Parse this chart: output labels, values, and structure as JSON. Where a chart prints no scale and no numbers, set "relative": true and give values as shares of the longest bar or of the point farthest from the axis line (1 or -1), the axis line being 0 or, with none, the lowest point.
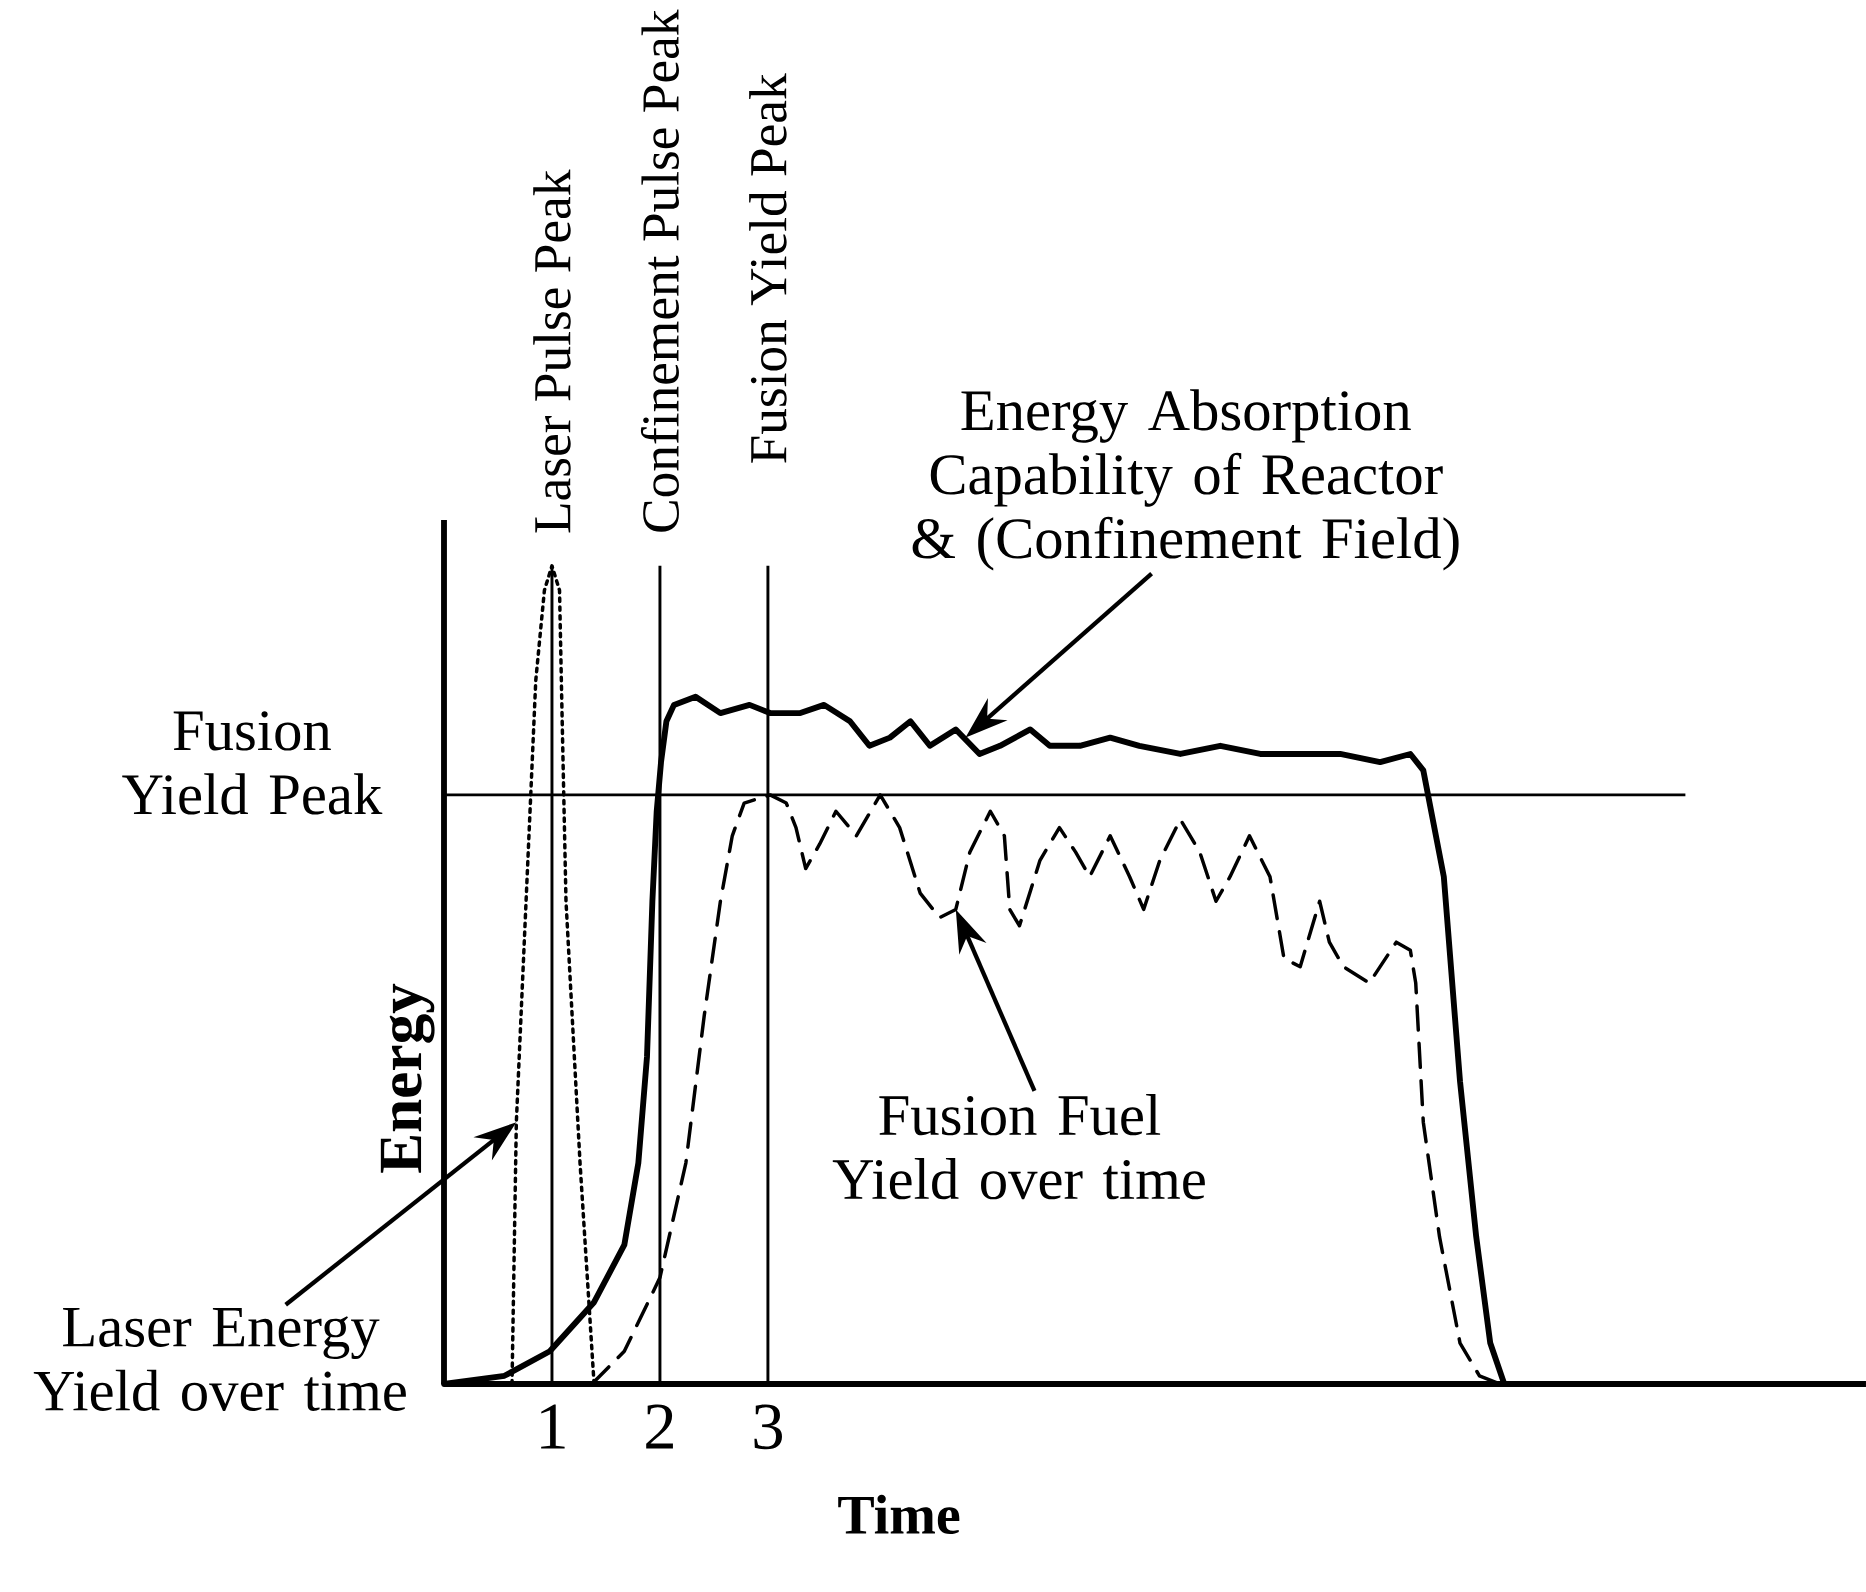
{
  "chart_data": {
    "type": "line",
    "relative": true,
    "xlabel": "Time",
    "ylabel": "Energy",
    "tick_labels": "x",
    "xlim": [
      0,
      13.17
    ],
    "xticks": [
      1,
      2,
      3
    ],
    "series": [
      {
        "color": "#000000",
        "line_style": "dotted",
        "x": [
          0.63,
          0.67,
          0.76,
          0.85,
          0.93,
          1.0,
          1.07,
          1.09,
          1.13,
          1.26,
          1.39
        ],
        "values": [
          0,
          0.32,
          0.59,
          0.86,
          0.97,
          1,
          0.97,
          0.84,
          0.59,
          0.27,
          0
        ]
      },
      {
        "color": "#000000",
        "line_style": "solid",
        "x": [
          0,
          0.56,
          0.98,
          1.39,
          1.67,
          1.8,
          1.88,
          1.93,
          1.97,
          2.01,
          2.06,
          2.13,
          2.33,
          2.56,
          2.83,
          3.02,
          3.3,
          3.52,
          3.76,
          3.94,
          4.13,
          4.32,
          4.5,
          4.74,
          4.96,
          5.15,
          5.43,
          5.61,
          5.89,
          6.17,
          6.44,
          6.82,
          7.19,
          7.56,
          7.93,
          8.3,
          8.67,
          8.95,
          9.07,
          9.26,
          9.41,
          9.56,
          9.69,
          9.82,
          9.93
        ],
        "values": [
          0,
          0.01,
          0.04,
          0.1,
          0.17,
          0.27,
          0.4,
          0.59,
          0.7,
          0.76,
          0.81,
          0.83,
          0.84,
          0.82,
          0.83,
          0.82,
          0.82,
          0.83,
          0.81,
          0.78,
          0.79,
          0.81,
          0.78,
          0.8,
          0.77,
          0.78,
          0.8,
          0.78,
          0.78,
          0.79,
          0.78,
          0.77,
          0.78,
          0.77,
          0.77,
          0.77,
          0.76,
          0.77,
          0.75,
          0.62,
          0.37,
          0.18,
          0.05,
          0.0,
          0
        ]
      },
      {
        "color": "#000000",
        "line_style": "dashed",
        "x": [
          1.37,
          1.67,
          2.0,
          2.24,
          2.41,
          2.56,
          2.67,
          2.78,
          3.02,
          3.17,
          3.26,
          3.35,
          3.48,
          3.63,
          3.82,
          4.04,
          4.22,
          4.41,
          4.59,
          4.74,
          4.87,
          5.06,
          5.19,
          5.24,
          5.33,
          5.52,
          5.7,
          5.85,
          5.98,
          6.17,
          6.35,
          6.48,
          6.63,
          6.82,
          7.0,
          7.15,
          7.28,
          7.46,
          7.65,
          7.78,
          7.93,
          8.11,
          8.2,
          8.33,
          8.57,
          8.82,
          8.95,
          9.0,
          9.07,
          9.22,
          9.41,
          9.59,
          9.78
        ],
        "values": [
          0,
          0.04,
          0.13,
          0.27,
          0.45,
          0.59,
          0.67,
          0.71,
          0.72,
          0.71,
          0.68,
          0.63,
          0.66,
          0.7,
          0.67,
          0.72,
          0.68,
          0.6,
          0.57,
          0.58,
          0.65,
          0.7,
          0.67,
          0.58,
          0.56,
          0.64,
          0.68,
          0.65,
          0.62,
          0.67,
          0.62,
          0.58,
          0.64,
          0.69,
          0.65,
          0.59,
          0.62,
          0.67,
          0.62,
          0.52,
          0.51,
          0.59,
          0.54,
          0.51,
          0.49,
          0.54,
          0.53,
          0.49,
          0.32,
          0.18,
          0.05,
          0.01,
          0
        ]
      }
    ],
    "ref_lines": [
      {
        "axis": "x",
        "value": 1,
        "label": "Laser Pulse Peak"
      },
      {
        "axis": "x",
        "value": 2,
        "label": "Confinement Pulse Peak"
      },
      {
        "axis": "x",
        "value": 3,
        "label": "Fusion Yield Peak"
      },
      {
        "axis": "y",
        "value": 0.72,
        "label": "Fusion Yield Peak"
      }
    ],
    "annotations": [
      {
        "text": "Energy Absorption Capability of Reactor & (Confinement Field)",
        "x": 4.83,
        "y": 0.79
      },
      "Fusion Fuel Yield over time",
      "Laser Energy Yield over time"
    ]
  }
}
